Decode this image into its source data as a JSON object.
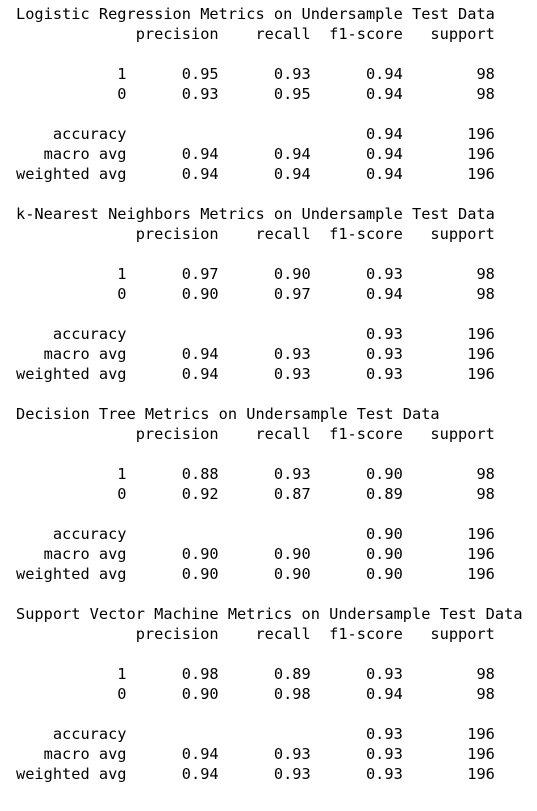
{
  "reports": [
    {
      "title": "Logistic Regression Metrics on Undersample Test Data",
      "columns": [
        "precision",
        "recall",
        "f1-score",
        "support"
      ],
      "rows": [
        {
          "label": "1",
          "precision": "0.95",
          "recall": "0.93",
          "f1": "0.94",
          "support": "98"
        },
        {
          "label": "0",
          "precision": "0.93",
          "recall": "0.95",
          "f1": "0.94",
          "support": "98"
        }
      ],
      "summary": [
        {
          "label": "accuracy",
          "precision": "",
          "recall": "",
          "f1": "0.94",
          "support": "196"
        },
        {
          "label": "macro avg",
          "precision": "0.94",
          "recall": "0.94",
          "f1": "0.94",
          "support": "196"
        },
        {
          "label": "weighted avg",
          "precision": "0.94",
          "recall": "0.94",
          "f1": "0.94",
          "support": "196"
        }
      ]
    },
    {
      "title": "k-Nearest Neighbors Metrics on Undersample Test Data",
      "columns": [
        "precision",
        "recall",
        "f1-score",
        "support"
      ],
      "rows": [
        {
          "label": "1",
          "precision": "0.97",
          "recall": "0.90",
          "f1": "0.93",
          "support": "98"
        },
        {
          "label": "0",
          "precision": "0.90",
          "recall": "0.97",
          "f1": "0.94",
          "support": "98"
        }
      ],
      "summary": [
        {
          "label": "accuracy",
          "precision": "",
          "recall": "",
          "f1": "0.93",
          "support": "196"
        },
        {
          "label": "macro avg",
          "precision": "0.94",
          "recall": "0.93",
          "f1": "0.93",
          "support": "196"
        },
        {
          "label": "weighted avg",
          "precision": "0.94",
          "recall": "0.93",
          "f1": "0.93",
          "support": "196"
        }
      ]
    },
    {
      "title": "Decision Tree Metrics on Undersample Test Data",
      "columns": [
        "precision",
        "recall",
        "f1-score",
        "support"
      ],
      "rows": [
        {
          "label": "1",
          "precision": "0.88",
          "recall": "0.93",
          "f1": "0.90",
          "support": "98"
        },
        {
          "label": "0",
          "precision": "0.92",
          "recall": "0.87",
          "f1": "0.89",
          "support": "98"
        }
      ],
      "summary": [
        {
          "label": "accuracy",
          "precision": "",
          "recall": "",
          "f1": "0.90",
          "support": "196"
        },
        {
          "label": "macro avg",
          "precision": "0.90",
          "recall": "0.90",
          "f1": "0.90",
          "support": "196"
        },
        {
          "label": "weighted avg",
          "precision": "0.90",
          "recall": "0.90",
          "f1": "0.90",
          "support": "196"
        }
      ]
    },
    {
      "title": "Support Vector Machine Metrics on Undersample Test Data",
      "columns": [
        "precision",
        "recall",
        "f1-score",
        "support"
      ],
      "rows": [
        {
          "label": "1",
          "precision": "0.98",
          "recall": "0.89",
          "f1": "0.93",
          "support": "98"
        },
        {
          "label": "0",
          "precision": "0.90",
          "recall": "0.98",
          "f1": "0.94",
          "support": "98"
        }
      ],
      "summary": [
        {
          "label": "accuracy",
          "precision": "",
          "recall": "",
          "f1": "0.93",
          "support": "196"
        },
        {
          "label": "macro avg",
          "precision": "0.94",
          "recall": "0.93",
          "f1": "0.93",
          "support": "196"
        },
        {
          "label": "weighted avg",
          "precision": "0.94",
          "recall": "0.93",
          "f1": "0.93",
          "support": "196"
        }
      ]
    }
  ]
}
